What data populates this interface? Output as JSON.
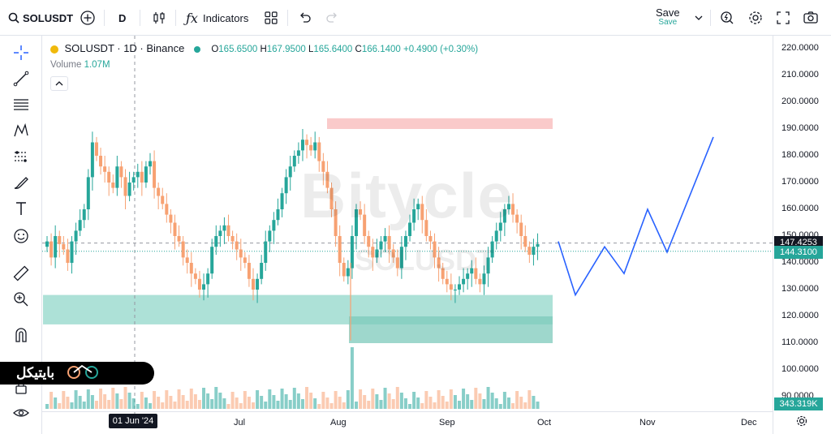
{
  "topbar": {
    "symbol": "SOLUSDT",
    "interval": "D",
    "indicators_label": "Indicators",
    "save_label": "Save",
    "save_sub": "Save"
  },
  "legend": {
    "title": "SOLUSDT · 1D · Binance",
    "o_label": "O",
    "o": "165.6500",
    "h_label": "H",
    "h": "167.9500",
    "l_label": "L",
    "l": "165.6400",
    "c_label": "C",
    "c": "166.1400",
    "change": "+0.4900 (+0.30%)",
    "volume_label": "Volume",
    "volume_value": "1.07M"
  },
  "watermark": {
    "main": "Bitycle",
    "sub": "SOLUSDT"
  },
  "logo": {
    "text": "بایتیکل"
  },
  "price_scale": {
    "labels": [
      "220.0000",
      "210.0000",
      "200.0000",
      "190.0000",
      "180.0000",
      "170.0000",
      "160.0000",
      "150.0000",
      "140.0000",
      "130.0000",
      "120.0000",
      "110.0000",
      "100.0000",
      "90.0000"
    ],
    "current_price": "147.4253",
    "last_price": "144.3100",
    "volume_badge": "343.319K"
  },
  "time_scale": {
    "crosshair_date": "01 Jun '24",
    "labels": [
      "Jul",
      "Aug",
      "Sep",
      "Oct",
      "Nov",
      "Dec"
    ]
  },
  "colors": {
    "up": "#26a69a",
    "down": "#f7a172",
    "projection": "#2962ff",
    "zone_red": "#f9c1c1",
    "zone_green": "#9fdcd0",
    "zone_green_dark": "#7ec9bb"
  },
  "chart_data": {
    "type": "candlestick",
    "symbol": "SOLUSDT",
    "interval": "1D",
    "exchange": "Binance",
    "ylim": [
      85,
      225
    ],
    "closes": [
      148,
      142,
      150,
      147,
      145,
      140,
      148,
      152,
      156,
      160,
      172,
      185,
      180,
      176,
      174,
      170,
      168,
      176,
      172,
      165,
      170,
      172,
      174,
      170,
      176,
      178,
      168,
      165,
      162,
      158,
      155,
      150,
      148,
      142,
      140,
      136,
      134,
      130,
      132,
      136,
      146,
      150,
      152,
      154,
      150,
      148,
      145,
      142,
      140,
      134,
      130,
      134,
      140,
      148,
      152,
      156,
      160,
      166,
      172,
      176,
      180,
      182,
      186,
      184,
      182,
      185,
      178,
      174,
      168,
      160,
      150,
      140,
      135,
      138,
      150,
      160,
      158,
      150,
      146,
      142,
      145,
      148,
      150,
      145,
      142,
      138,
      146,
      150,
      155,
      160,
      162,
      156,
      150,
      148,
      142,
      138,
      134,
      132,
      130,
      130,
      132,
      134,
      136,
      138,
      134,
      132,
      136,
      142,
      148,
      152,
      155,
      160,
      162,
      158,
      155,
      150,
      146,
      143,
      146,
      147
    ],
    "volume_max": 40,
    "projection": [
      [
        147,
        134
      ],
      [
        128,
        142
      ],
      [
        145,
        134
      ],
      [
        136,
        148
      ],
      [
        160,
        151
      ],
      [
        144,
        144
      ],
      [
        187,
        144
      ]
    ],
    "zones": [
      {
        "name": "resistance",
        "from": 190,
        "to": 194
      },
      {
        "name": "support",
        "from": 117,
        "to": 128
      },
      {
        "name": "support-low",
        "from": 110,
        "to": 120
      }
    ]
  }
}
